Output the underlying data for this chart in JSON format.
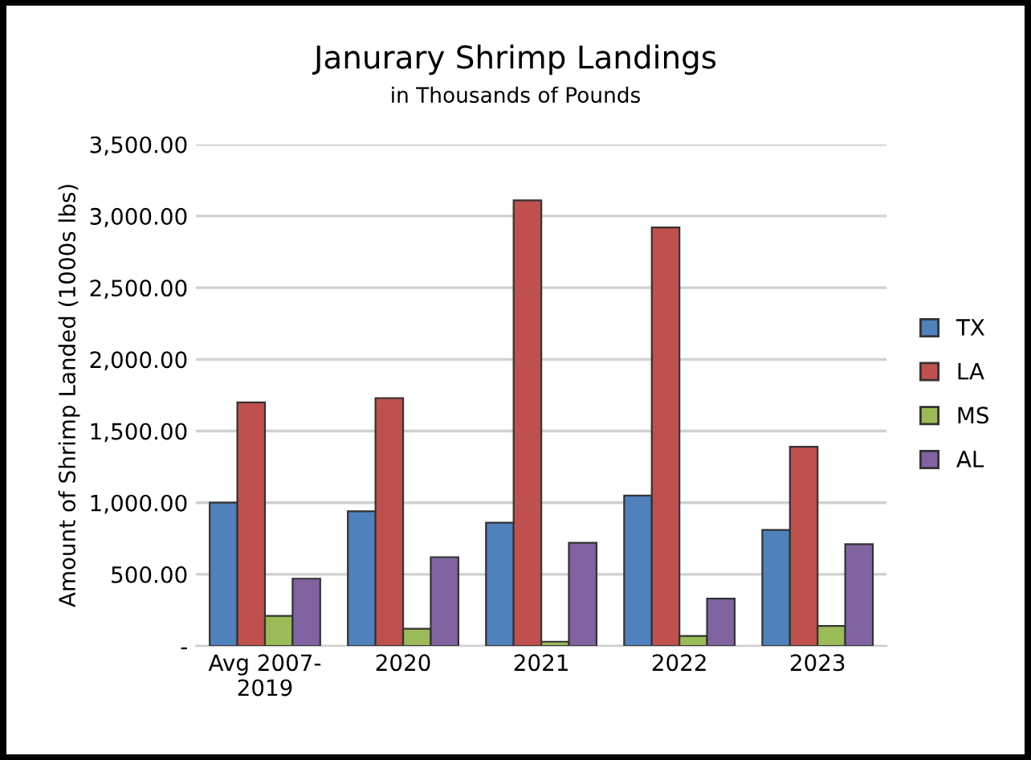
{
  "chart_data": {
    "type": "bar",
    "title": "Janurary Shrimp Landings",
    "subtitle": "in Thousands of Pounds",
    "ylabel": "Amount of Shrimp Landed (1000s lbs)",
    "categories": [
      "Avg 2007-\n2019",
      "2020",
      "2021",
      "2022",
      "2023"
    ],
    "series": [
      {
        "name": "TX",
        "color": "#4f81bd",
        "values": [
          1000,
          940,
          860,
          1050,
          810
        ]
      },
      {
        "name": "LA",
        "color": "#c0504d",
        "values": [
          1700,
          1730,
          3110,
          2920,
          1390
        ]
      },
      {
        "name": "MS",
        "color": "#9bbb59",
        "values": [
          210,
          120,
          30,
          70,
          140
        ]
      },
      {
        "name": "AL",
        "color": "#8064a2",
        "values": [
          470,
          620,
          720,
          330,
          710
        ]
      }
    ],
    "ylim": [
      0,
      3500
    ],
    "yticks": [
      {
        "value": 0,
        "label": "-"
      },
      {
        "value": 500,
        "label": "500.00"
      },
      {
        "value": 1000,
        "label": "1,000.00"
      },
      {
        "value": 1500,
        "label": "1,500.00"
      },
      {
        "value": 2000,
        "label": "2,000.00"
      },
      {
        "value": 2500,
        "label": "2,500.00"
      },
      {
        "value": 3000,
        "label": "3,000.00"
      },
      {
        "value": 3500,
        "label": "3,500.00"
      }
    ],
    "grid": "y",
    "legend": "right"
  }
}
